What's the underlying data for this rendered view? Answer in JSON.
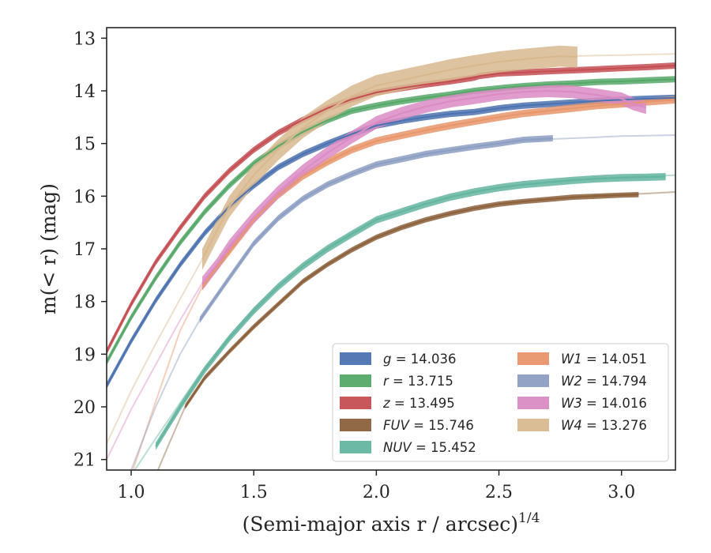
{
  "chart_data": {
    "type": "line",
    "xlabel": "(Semi-major axis r / arcsec)",
    "xlabel_power": "1/4",
    "ylabel": "m(< r) (mag)",
    "xlim": [
      0.9,
      3.22
    ],
    "ylim": [
      21.2,
      12.8
    ],
    "y_inverted": true,
    "x_ticks": [
      1.0,
      1.5,
      2.0,
      2.5,
      3.0
    ],
    "x_tick_labels": [
      "1.0",
      "1.5",
      "2.0",
      "2.5",
      "3.0"
    ],
    "y_ticks": [
      13,
      14,
      15,
      16,
      17,
      18,
      19,
      20,
      21
    ],
    "y_tick_labels": [
      "13",
      "14",
      "15",
      "16",
      "17",
      "18",
      "19",
      "20",
      "21"
    ],
    "legend_position": "lower-right",
    "series": [
      {
        "name": "g",
        "total": "14.036",
        "color": "#4c72b0",
        "band": 0.06,
        "main": [
          [
            0.9,
            19.6
          ],
          [
            1.0,
            18.75
          ],
          [
            1.1,
            17.98
          ],
          [
            1.2,
            17.3
          ],
          [
            1.3,
            16.7
          ],
          [
            1.4,
            16.2
          ],
          [
            1.5,
            15.8
          ],
          [
            1.6,
            15.45
          ],
          [
            1.7,
            15.2
          ],
          [
            1.8,
            15.0
          ],
          [
            1.9,
            14.82
          ],
          [
            2.0,
            14.66
          ],
          [
            2.1,
            14.57
          ],
          [
            2.2,
            14.5
          ],
          [
            2.3,
            14.44
          ],
          [
            2.4,
            14.4
          ],
          [
            2.5,
            14.33
          ],
          [
            2.6,
            14.28
          ],
          [
            2.7,
            14.25
          ],
          [
            2.8,
            14.22
          ],
          [
            2.9,
            14.19
          ],
          [
            3.0,
            14.17
          ],
          [
            3.1,
            14.15
          ],
          [
            3.22,
            14.13
          ]
        ],
        "faint": []
      },
      {
        "name": "r",
        "total": "13.715",
        "color": "#55a868",
        "band": 0.06,
        "main": [
          [
            0.9,
            19.15
          ],
          [
            1.0,
            18.3
          ],
          [
            1.1,
            17.55
          ],
          [
            1.2,
            16.88
          ],
          [
            1.3,
            16.3
          ],
          [
            1.4,
            15.8
          ],
          [
            1.5,
            15.38
          ],
          [
            1.6,
            15.05
          ],
          [
            1.7,
            14.78
          ],
          [
            1.8,
            14.56
          ],
          [
            1.9,
            14.38
          ],
          [
            2.0,
            14.28
          ],
          [
            2.1,
            14.2
          ],
          [
            2.2,
            14.13
          ],
          [
            2.3,
            14.07
          ],
          [
            2.4,
            14.0
          ],
          [
            2.5,
            13.95
          ],
          [
            2.6,
            13.91
          ],
          [
            2.7,
            13.88
          ],
          [
            2.8,
            13.86
          ],
          [
            2.9,
            13.83
          ],
          [
            3.0,
            13.82
          ],
          [
            3.1,
            13.8
          ],
          [
            3.22,
            13.78
          ]
        ],
        "faint": []
      },
      {
        "name": "z",
        "total": "13.495",
        "color": "#c44e52",
        "band": 0.06,
        "main": [
          [
            0.9,
            18.95
          ],
          [
            1.0,
            18.05
          ],
          [
            1.1,
            17.25
          ],
          [
            1.2,
            16.6
          ],
          [
            1.3,
            16.0
          ],
          [
            1.4,
            15.52
          ],
          [
            1.5,
            15.12
          ],
          [
            1.6,
            14.8
          ],
          [
            1.7,
            14.55
          ],
          [
            1.8,
            14.33
          ],
          [
            1.9,
            14.16
          ],
          [
            2.0,
            14.03
          ],
          [
            2.1,
            13.95
          ],
          [
            2.2,
            13.88
          ],
          [
            2.3,
            13.82
          ],
          [
            2.4,
            13.75
          ],
          [
            2.42,
            13.72
          ],
          [
            2.5,
            13.67
          ],
          [
            2.6,
            13.65
          ],
          [
            2.7,
            13.63
          ],
          [
            2.8,
            13.61
          ],
          [
            2.9,
            13.59
          ],
          [
            3.0,
            13.57
          ],
          [
            3.1,
            13.55
          ],
          [
            3.22,
            13.52
          ]
        ],
        "faint": []
      },
      {
        "name": "FUV",
        "total": "15.746",
        "color": "#8c613c",
        "band": 0.05,
        "main": [
          [
            1.22,
            20.0
          ],
          [
            1.3,
            19.45
          ],
          [
            1.4,
            18.95
          ],
          [
            1.5,
            18.48
          ],
          [
            1.6,
            18.05
          ],
          [
            1.7,
            17.62
          ],
          [
            1.8,
            17.3
          ],
          [
            1.9,
            17.02
          ],
          [
            2.0,
            16.78
          ],
          [
            2.1,
            16.6
          ],
          [
            2.2,
            16.45
          ],
          [
            2.3,
            16.33
          ],
          [
            2.4,
            16.23
          ],
          [
            2.5,
            16.15
          ],
          [
            2.6,
            16.1
          ],
          [
            2.7,
            16.06
          ],
          [
            2.8,
            16.02
          ],
          [
            2.9,
            16.0
          ],
          [
            3.0,
            15.98
          ],
          [
            3.07,
            15.97
          ]
        ],
        "faint": [
          [
            1.1,
            21.3
          ],
          [
            1.15,
            20.75
          ],
          [
            1.22,
            20.0
          ],
          [
            1.3,
            19.45
          ],
          [
            1.4,
            18.95
          ],
          [
            1.5,
            18.48
          ],
          [
            1.6,
            18.05
          ],
          [
            1.7,
            17.62
          ],
          [
            1.8,
            17.3
          ],
          [
            1.9,
            17.02
          ],
          [
            2.0,
            16.78
          ],
          [
            2.1,
            16.6
          ],
          [
            2.2,
            16.45
          ],
          [
            2.3,
            16.33
          ],
          [
            2.4,
            16.23
          ],
          [
            2.5,
            16.15
          ],
          [
            2.6,
            16.1
          ],
          [
            2.7,
            16.06
          ],
          [
            2.8,
            16.02
          ],
          [
            2.9,
            15.99
          ],
          [
            3.0,
            15.97
          ],
          [
            3.1,
            15.95
          ],
          [
            3.22,
            15.92
          ]
        ]
      },
      {
        "name": "NUV",
        "total": "15.452",
        "color": "#64b5a0",
        "band": 0.07,
        "main": [
          [
            1.1,
            20.75
          ],
          [
            1.2,
            20.0
          ],
          [
            1.3,
            19.3
          ],
          [
            1.4,
            18.7
          ],
          [
            1.5,
            18.18
          ],
          [
            1.6,
            17.72
          ],
          [
            1.7,
            17.33
          ],
          [
            1.8,
            17.0
          ],
          [
            1.9,
            16.72
          ],
          [
            2.0,
            16.45
          ],
          [
            2.1,
            16.3
          ],
          [
            2.2,
            16.15
          ],
          [
            2.3,
            16.02
          ],
          [
            2.4,
            15.92
          ],
          [
            2.5,
            15.84
          ],
          [
            2.6,
            15.78
          ],
          [
            2.7,
            15.74
          ],
          [
            2.8,
            15.7
          ],
          [
            2.9,
            15.67
          ],
          [
            3.0,
            15.65
          ],
          [
            3.1,
            15.64
          ],
          [
            3.18,
            15.63
          ]
        ],
        "faint": [
          [
            1.0,
            21.3
          ],
          [
            1.1,
            20.6
          ],
          [
            1.2,
            19.92
          ],
          [
            1.3,
            19.25
          ],
          [
            1.4,
            18.66
          ],
          [
            1.5,
            18.14
          ],
          [
            1.6,
            17.7
          ],
          [
            1.7,
            17.32
          ],
          [
            1.8,
            16.98
          ],
          [
            1.9,
            16.7
          ],
          [
            2.0,
            16.44
          ],
          [
            2.1,
            16.29
          ],
          [
            2.2,
            16.14
          ],
          [
            2.3,
            16.01
          ],
          [
            2.4,
            15.91
          ],
          [
            2.5,
            15.83
          ],
          [
            2.6,
            15.77
          ],
          [
            2.7,
            15.73
          ],
          [
            2.8,
            15.69
          ],
          [
            2.9,
            15.66
          ],
          [
            3.0,
            15.64
          ],
          [
            3.1,
            15.62
          ],
          [
            3.22,
            15.6
          ]
        ]
      },
      {
        "name": "W1",
        "total": "14.051",
        "color": "#e8956a",
        "band": 0.07,
        "main": [
          [
            1.29,
            17.72
          ],
          [
            1.35,
            17.35
          ],
          [
            1.4,
            17.05
          ],
          [
            1.5,
            16.45
          ],
          [
            1.6,
            15.98
          ],
          [
            1.7,
            15.62
          ],
          [
            1.8,
            15.35
          ],
          [
            1.9,
            15.12
          ],
          [
            2.0,
            14.95
          ],
          [
            2.1,
            14.85
          ],
          [
            2.2,
            14.75
          ],
          [
            2.3,
            14.66
          ],
          [
            2.4,
            14.58
          ],
          [
            2.5,
            14.5
          ],
          [
            2.6,
            14.43
          ],
          [
            2.7,
            14.38
          ],
          [
            2.8,
            14.33
          ],
          [
            2.9,
            14.28
          ],
          [
            3.0,
            14.25
          ],
          [
            3.1,
            14.21
          ],
          [
            3.22,
            14.17
          ]
        ],
        "faint": [
          [
            1.0,
            21.3
          ],
          [
            1.1,
            19.9
          ],
          [
            1.2,
            18.55
          ],
          [
            1.29,
            17.72
          ]
        ]
      },
      {
        "name": "W2",
        "total": "14.794",
        "color": "#8c9ec2",
        "band": 0.06,
        "main": [
          [
            1.28,
            18.35
          ],
          [
            1.4,
            17.55
          ],
          [
            1.5,
            16.9
          ],
          [
            1.6,
            16.42
          ],
          [
            1.7,
            16.05
          ],
          [
            1.8,
            15.78
          ],
          [
            1.9,
            15.58
          ],
          [
            2.0,
            15.4
          ],
          [
            2.1,
            15.3
          ],
          [
            2.2,
            15.2
          ],
          [
            2.3,
            15.13
          ],
          [
            2.4,
            15.06
          ],
          [
            2.5,
            15.0
          ],
          [
            2.6,
            14.93
          ],
          [
            2.72,
            14.9
          ]
        ],
        "faint": [
          [
            1.0,
            21.2
          ],
          [
            1.1,
            20.0
          ],
          [
            1.2,
            19.0
          ],
          [
            1.28,
            18.35
          ],
          [
            1.4,
            17.55
          ],
          [
            1.5,
            16.9
          ],
          [
            1.6,
            16.42
          ],
          [
            1.7,
            16.05
          ],
          [
            1.8,
            15.78
          ],
          [
            1.9,
            15.58
          ],
          [
            2.0,
            15.4
          ],
          [
            2.1,
            15.3
          ],
          [
            2.2,
            15.2
          ],
          [
            2.3,
            15.12
          ],
          [
            2.4,
            15.05
          ],
          [
            2.5,
            14.99
          ],
          [
            2.6,
            14.95
          ],
          [
            2.7,
            14.92
          ],
          [
            2.8,
            14.9
          ],
          [
            2.9,
            14.88
          ],
          [
            3.0,
            14.86
          ],
          [
            3.1,
            14.85
          ],
          [
            3.22,
            14.84
          ]
        ]
      },
      {
        "name": "W3",
        "total": "14.016",
        "color": "#da8bc3",
        "band": 0.12,
        "main": [
          [
            1.29,
            17.65
          ],
          [
            1.35,
            17.3
          ],
          [
            1.4,
            16.95
          ],
          [
            1.5,
            16.4
          ],
          [
            1.6,
            15.92
          ],
          [
            1.7,
            15.52
          ],
          [
            1.8,
            15.18
          ],
          [
            1.9,
            14.88
          ],
          [
            2.0,
            14.6
          ],
          [
            2.1,
            14.43
          ],
          [
            2.2,
            14.3
          ],
          [
            2.3,
            14.2
          ],
          [
            2.4,
            14.13
          ],
          [
            2.5,
            14.06
          ],
          [
            2.6,
            14.02
          ],
          [
            2.7,
            14.0
          ],
          [
            2.8,
            14.02
          ],
          [
            2.9,
            14.08
          ],
          [
            3.0,
            14.15
          ],
          [
            3.05,
            14.25
          ],
          [
            3.1,
            14.32
          ]
        ],
        "faint": [
          [
            0.9,
            21.0
          ],
          [
            1.0,
            20.05
          ],
          [
            1.1,
            19.2
          ],
          [
            1.2,
            18.35
          ],
          [
            1.29,
            17.65
          ]
        ]
      },
      {
        "name": "W4",
        "total": "13.276",
        "color": "#d8b98f",
        "band": 0.2,
        "main": [
          [
            1.29,
            17.2
          ],
          [
            1.35,
            16.65
          ],
          [
            1.4,
            16.2
          ],
          [
            1.5,
            15.6
          ],
          [
            1.6,
            15.12
          ],
          [
            1.7,
            14.7
          ],
          [
            1.8,
            14.38
          ],
          [
            1.9,
            14.1
          ],
          [
            2.0,
            13.9
          ],
          [
            2.1,
            13.8
          ],
          [
            2.2,
            13.7
          ],
          [
            2.3,
            13.6
          ],
          [
            2.4,
            13.52
          ],
          [
            2.5,
            13.45
          ],
          [
            2.6,
            13.4
          ],
          [
            2.7,
            13.36
          ],
          [
            2.75,
            13.34
          ],
          [
            2.82,
            13.36
          ]
        ],
        "faint": [
          [
            0.9,
            20.7
          ],
          [
            1.0,
            19.7
          ],
          [
            1.1,
            18.8
          ],
          [
            1.2,
            17.95
          ],
          [
            1.29,
            17.2
          ],
          [
            1.35,
            16.65
          ],
          [
            1.4,
            16.2
          ],
          [
            1.5,
            15.6
          ],
          [
            1.6,
            15.12
          ],
          [
            1.7,
            14.7
          ],
          [
            1.8,
            14.38
          ],
          [
            1.9,
            14.1
          ],
          [
            2.0,
            13.9
          ],
          [
            2.1,
            13.8
          ],
          [
            2.2,
            13.7
          ],
          [
            2.3,
            13.6
          ],
          [
            2.4,
            13.52
          ],
          [
            2.5,
            13.45
          ],
          [
            2.6,
            13.4
          ],
          [
            2.7,
            13.36
          ],
          [
            2.8,
            13.34
          ],
          [
            2.9,
            13.33
          ],
          [
            3.0,
            13.32
          ],
          [
            3.1,
            13.31
          ],
          [
            3.22,
            13.3
          ]
        ]
      }
    ]
  }
}
